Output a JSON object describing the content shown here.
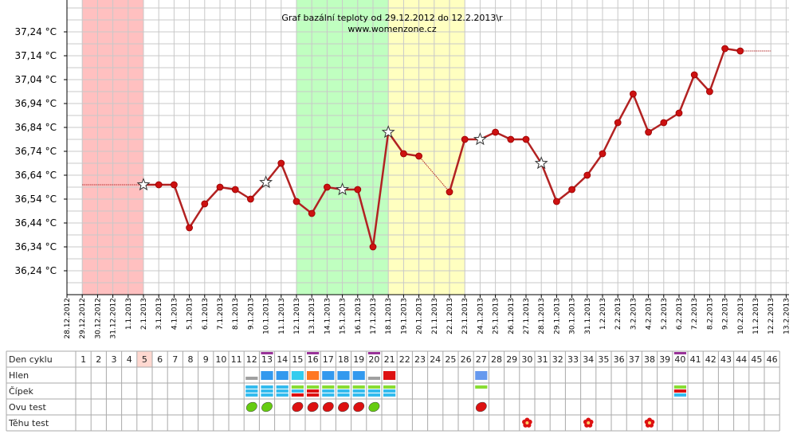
{
  "chart_data": {
    "type": "line",
    "title": "Graf bazální teploty od 29.12.2012 do 12.2.2013\\r",
    "subtitle": "www.womenzone.cz",
    "y_ticks": [
      "36,24 °C",
      "36,34 °C",
      "36,44 °C",
      "36,54 °C",
      "36,64 °C",
      "36,74 °C",
      "36,84 °C",
      "36,94 °C",
      "37,04 °C",
      "37,14 °C",
      "37,24 °C"
    ],
    "ylim": [
      36.14,
      37.33
    ],
    "x_dates": [
      "28.12.2012",
      "29.12.2012",
      "30.12.2012",
      "31.12.2012",
      "1.1.2013",
      "2.1.2013",
      "3.1.2013",
      "4.1.2013",
      "5.1.2013",
      "6.1.2013",
      "7.1.2013",
      "8.1.2013",
      "9.1.2013",
      "10.1.2013",
      "11.1.2013",
      "12.1.2013",
      "13.1.2013",
      "14.1.2013",
      "15.1.2013",
      "16.1.2013",
      "17.1.2013",
      "18.1.2013",
      "19.1.2013",
      "20.1.2013",
      "21.1.2013",
      "22.1.2013",
      "23.1.2013",
      "24.1.2013",
      "25.1.2013",
      "26.1.2013",
      "27.1.2013",
      "28.1.2013",
      "29.1.2013",
      "30.1.2013",
      "31.1.2013",
      "1.2.2013",
      "2.2.2013",
      "3.2.2013",
      "4.2.2013",
      "5.2.2013",
      "6.2.2013",
      "7.2.2013",
      "8.2.2013",
      "9.2.2013",
      "10.2.2013",
      "11.2.2013",
      "12.2.2013",
      "13.2.2013"
    ],
    "bands": [
      {
        "from_date": "29.12.2012",
        "to_date": "2.1.2013",
        "color": "#ffc0c0"
      },
      {
        "from_date": "12.1.2013",
        "to_date": "18.1.2013",
        "color": "#c0ffc0"
      },
      {
        "from_date": "18.1.2013",
        "to_date": "23.1.2013",
        "color": "#ffffc0"
      }
    ],
    "series": [
      {
        "line_color": "#b22222",
        "points": [
          {
            "date": "2.1.2013",
            "value": 36.6,
            "star": true
          },
          {
            "date": "3.1.2013",
            "value": 36.6
          },
          {
            "date": "4.1.2013",
            "value": 36.6
          },
          {
            "date": "5.1.2013",
            "value": 36.42
          },
          {
            "date": "6.1.2013",
            "value": 36.52
          },
          {
            "date": "7.1.2013",
            "value": 36.59
          },
          {
            "date": "8.1.2013",
            "value": 36.58
          },
          {
            "date": "9.1.2013",
            "value": 36.54
          },
          {
            "date": "10.1.2013",
            "value": 36.61,
            "star": true
          },
          {
            "date": "11.1.2013",
            "value": 36.69
          },
          {
            "date": "12.1.2013",
            "value": 36.53
          },
          {
            "date": "13.1.2013",
            "value": 36.48
          },
          {
            "date": "14.1.2013",
            "value": 36.59
          },
          {
            "date": "15.1.2013",
            "value": 36.58,
            "star": true
          },
          {
            "date": "16.1.2013",
            "value": 36.58
          },
          {
            "date": "17.1.2013",
            "value": 36.34
          },
          {
            "date": "18.1.2013",
            "value": 36.82,
            "star": true
          },
          {
            "date": "19.1.2013",
            "value": 36.73
          },
          {
            "date": "20.1.2013",
            "value": 36.72
          },
          {
            "date": "22.1.2013",
            "value": 36.57
          },
          {
            "date": "23.1.2013",
            "value": 36.79
          },
          {
            "date": "24.1.2013",
            "value": 36.79,
            "star": true
          },
          {
            "date": "25.1.2013",
            "value": 36.82
          },
          {
            "date": "26.1.2013",
            "value": 36.79
          },
          {
            "date": "27.1.2013",
            "value": 36.79
          },
          {
            "date": "28.1.2013",
            "value": 36.69,
            "star": true
          },
          {
            "date": "29.1.2013",
            "value": 36.53
          },
          {
            "date": "30.1.2013",
            "value": 36.58
          },
          {
            "date": "31.1.2013",
            "value": 36.64
          },
          {
            "date": "1.2.2013",
            "value": 36.73
          },
          {
            "date": "2.2.2013",
            "value": 36.86
          },
          {
            "date": "3.2.2013",
            "value": 36.98
          },
          {
            "date": "4.2.2013",
            "value": 36.82
          },
          {
            "date": "5.2.2013",
            "value": 36.86
          },
          {
            "date": "6.2.2013",
            "value": 36.9
          },
          {
            "date": "7.2.2013",
            "value": 37.06
          },
          {
            "date": "8.2.2013",
            "value": 36.99
          },
          {
            "date": "9.2.2013",
            "value": 37.17
          },
          {
            "date": "10.2.2013",
            "value": 37.16
          }
        ]
      }
    ],
    "dotted_lines": [
      {
        "from_date": "29.12.2012",
        "to_date": "2.1.2013",
        "value": 36.6
      },
      {
        "from_date": "10.2.2013",
        "to_date": "12.2.2013",
        "value": 37.16
      },
      {
        "from_date": "20.1.2013",
        "to_date": "22.1.2013",
        "value_from": 36.72,
        "value_to": 36.57
      }
    ],
    "grid": true
  },
  "table": {
    "rows": [
      "Den cyklu",
      "Hlen",
      "Čípek",
      "Ovu test",
      "Těhu test"
    ],
    "days": [
      "1",
      "2",
      "3",
      "4",
      "5",
      "6",
      "7",
      "8",
      "9",
      "10",
      "11",
      "12",
      "13",
      "14",
      "15",
      "16",
      "17",
      "18",
      "19",
      "20",
      "21",
      "22",
      "23",
      "24",
      "25",
      "26",
      "27",
      "28",
      "29",
      "30",
      "31",
      "32",
      "33",
      "34",
      "35",
      "36",
      "37",
      "38",
      "39",
      "40",
      "41",
      "42",
      "43",
      "44",
      "45",
      "46"
    ],
    "highlight_day": "5",
    "purple_marked_days": [
      "13",
      "16",
      "20",
      "40"
    ],
    "hlen": [
      {
        "day": "12",
        "color": "#a0a0a0",
        "kind": "thin"
      },
      {
        "day": "13",
        "color": "#3399ee",
        "kind": "block"
      },
      {
        "day": "14",
        "color": "#3399ee",
        "kind": "block"
      },
      {
        "day": "15",
        "color": "#33ccee",
        "kind": "block"
      },
      {
        "day": "16",
        "color": "#ff7722",
        "kind": "block"
      },
      {
        "day": "17",
        "color": "#3399ee",
        "kind": "block"
      },
      {
        "day": "18",
        "color": "#3399ee",
        "kind": "block"
      },
      {
        "day": "19",
        "color": "#3399ee",
        "kind": "block"
      },
      {
        "day": "20",
        "color": "#a0a0a0",
        "kind": "thin"
      },
      {
        "day": "21",
        "color": "#dd1111",
        "kind": "block"
      },
      {
        "day": "27",
        "color": "#6699ee",
        "kind": "block"
      }
    ],
    "cipek": [
      {
        "day": "12",
        "stripes": [
          "#33bbee",
          "#33bbee",
          "#33bbee"
        ]
      },
      {
        "day": "13",
        "stripes": [
          "#33bbee",
          "#33bbee",
          "#33bbee"
        ]
      },
      {
        "day": "14",
        "stripes": [
          "#33bbee",
          "#33bbee",
          "#33bbee"
        ]
      },
      {
        "day": "15",
        "stripes": [
          "#88dd33",
          "#33bbee",
          "#dd1111"
        ]
      },
      {
        "day": "16",
        "stripes": [
          "#88dd33",
          "#dd1111",
          "#dd1111"
        ]
      },
      {
        "day": "17",
        "stripes": [
          "#88dd33",
          "#33bbee",
          "#33bbee"
        ]
      },
      {
        "day": "18",
        "stripes": [
          "#88dd33",
          "#33bbee",
          "#33bbee"
        ]
      },
      {
        "day": "19",
        "stripes": [
          "#88dd33",
          "#33bbee",
          "#33bbee"
        ]
      },
      {
        "day": "20",
        "stripes": [
          "#88dd33",
          "#33bbee",
          "#33bbee"
        ]
      },
      {
        "day": "21",
        "stripes": [
          "#88dd33",
          "#33bbee",
          "#33bbee"
        ]
      },
      {
        "day": "27",
        "stripes": [
          "#88dd33"
        ]
      },
      {
        "day": "40",
        "stripes": [
          "#88dd33",
          "#dd1111",
          "#33bbee"
        ]
      }
    ],
    "ovu": [
      {
        "day": "12",
        "color": "#66cc11"
      },
      {
        "day": "13",
        "color": "#66cc11"
      },
      {
        "day": "15",
        "color": "#dd1111"
      },
      {
        "day": "16",
        "color": "#dd1111"
      },
      {
        "day": "17",
        "color": "#dd1111"
      },
      {
        "day": "18",
        "color": "#dd1111"
      },
      {
        "day": "19",
        "color": "#dd1111"
      },
      {
        "day": "20",
        "color": "#66cc11"
      },
      {
        "day": "27",
        "color": "#dd1111"
      }
    ],
    "tehu": [
      {
        "day": "30",
        "color": "#dd1111"
      },
      {
        "day": "34",
        "color": "#dd1111"
      },
      {
        "day": "38",
        "color": "#dd1111"
      }
    ]
  }
}
